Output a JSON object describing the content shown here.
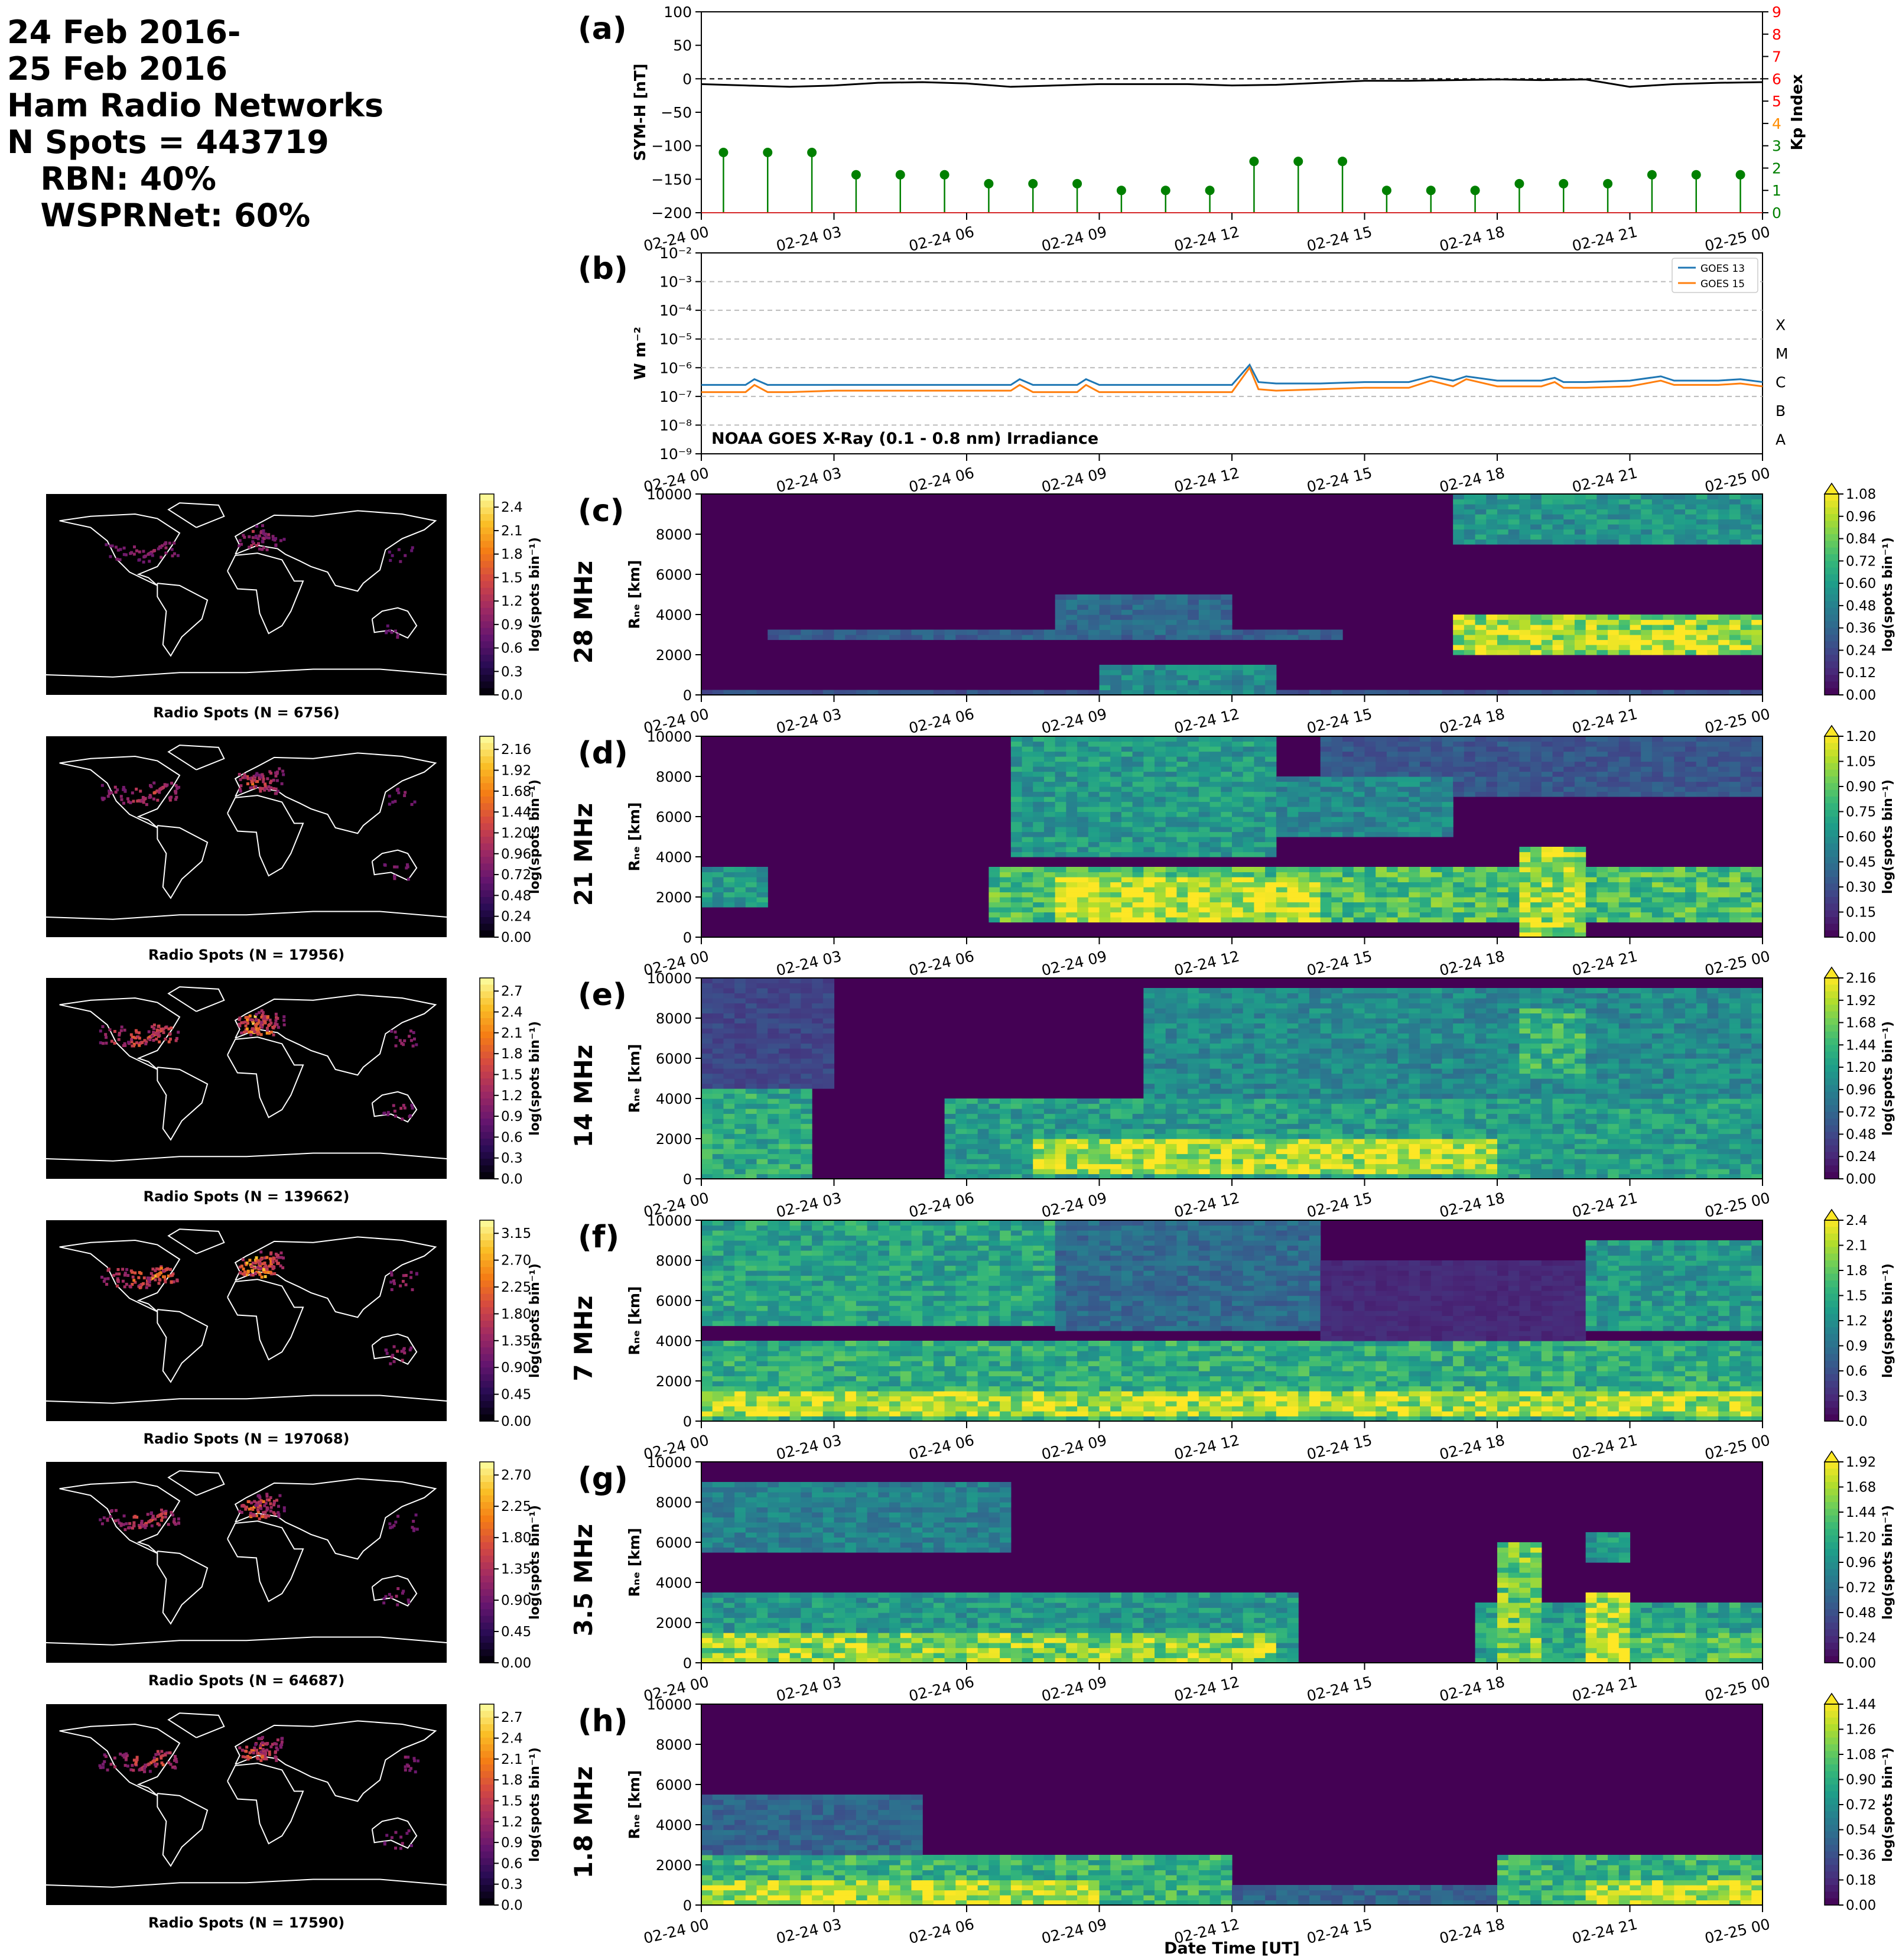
{
  "header": {
    "lines": [
      "24 Feb 2016-",
      "25 Feb 2016",
      "Ham Radio Networks",
      "N Spots = 443719",
      "   RBN: 40%",
      "   WSPRNet: 60%"
    ]
  },
  "colors": {
    "symh_line": "#000000",
    "kp_stem": "#008000",
    "goes13": "#1f77b4",
    "goes15": "#ff7f0e",
    "kp_axis_low": "#008000",
    "kp_axis_mid": "#ff8c00",
    "kp_axis_high": "#ff0000",
    "map_background": "#000000",
    "coastline": "#ffffff"
  },
  "time_ticks": [
    "02-24 00",
    "02-24 03",
    "02-24 06",
    "02-24 09",
    "02-24 12",
    "02-24 15",
    "02-24 18",
    "02-24 21",
    "02-25 00"
  ],
  "chart_data": [
    {
      "id": "a",
      "type": "line",
      "panel_label": "(a)",
      "ylabel": "SYM-H [nT]",
      "ylim": [
        -200,
        100
      ],
      "yticks": [
        "100",
        "50",
        "0",
        "−50",
        "−100",
        "−150",
        "−200"
      ],
      "y2label": "Kp Index",
      "y2lim": [
        0,
        9
      ],
      "y2ticks": [
        "0",
        "1",
        "2",
        "3",
        "4",
        "5",
        "6",
        "7",
        "8",
        "9"
      ],
      "x_hours": [
        0,
        1,
        2,
        3,
        4,
        5,
        6,
        7,
        8,
        9,
        10,
        11,
        12,
        13,
        14,
        15,
        16,
        17,
        18,
        19,
        20,
        21,
        22,
        23,
        24
      ],
      "symh": [
        -8,
        -10,
        -12,
        -10,
        -6,
        -5,
        -7,
        -12,
        -10,
        -8,
        -8,
        -8,
        -10,
        -9,
        -6,
        -3,
        -3,
        -2,
        -1,
        -2,
        -1,
        -12,
        -8,
        -6,
        -5
      ],
      "kp_times": [
        0,
        1,
        2,
        3,
        4,
        5,
        6,
        7,
        8,
        9,
        10,
        11,
        12,
        13,
        14,
        15,
        16,
        17,
        18,
        19,
        20,
        21,
        22,
        23
      ],
      "kp_values": [
        2.7,
        2.7,
        2.7,
        1.7,
        1.7,
        1.7,
        1.3,
        1.3,
        1.3,
        1.0,
        1.0,
        1.0,
        2.3,
        2.3,
        2.3,
        1.0,
        1.0,
        1.0,
        1.3,
        1.3,
        1.3,
        1.7,
        1.7,
        1.7
      ],
      "reference_line": 0
    },
    {
      "id": "b",
      "type": "line",
      "panel_label": "(b)",
      "ylabel": "W m⁻²",
      "yscale": "log",
      "ylim_exp": [
        -9,
        -2
      ],
      "yticks": [
        "10⁻²",
        "10⁻³",
        "10⁻⁴",
        "10⁻⁵",
        "10⁻⁶",
        "10⁻⁷",
        "10⁻⁸",
        "10⁻⁹"
      ],
      "flare_classes": [
        "X",
        "M",
        "C",
        "B",
        "A"
      ],
      "annotation": "NOAA GOES X-Ray (0.1 - 0.8 nm) Irradiance",
      "legend": [
        "GOES 13",
        "GOES 15"
      ],
      "legend_position": "top-right",
      "x_hours": [
        0,
        1,
        1.2,
        1.5,
        2,
        3,
        4,
        5,
        6,
        7,
        7.2,
        7.5,
        8,
        8.5,
        8.7,
        9,
        10,
        11,
        12,
        12.4,
        12.6,
        13,
        14,
        15,
        16,
        16.5,
        17,
        17.3,
        18,
        19,
        19.3,
        19.5,
        20,
        21,
        21.7,
        22,
        23,
        23.5,
        24
      ],
      "goes13_exp": [
        -6.6,
        -6.6,
        -6.4,
        -6.6,
        -6.6,
        -6.6,
        -6.6,
        -6.6,
        -6.6,
        -6.6,
        -6.4,
        -6.6,
        -6.6,
        -6.6,
        -6.4,
        -6.6,
        -6.6,
        -6.6,
        -6.6,
        -5.9,
        -6.5,
        -6.55,
        -6.55,
        -6.5,
        -6.5,
        -6.3,
        -6.45,
        -6.3,
        -6.45,
        -6.45,
        -6.35,
        -6.5,
        -6.5,
        -6.45,
        -6.3,
        -6.45,
        -6.45,
        -6.4,
        -6.5
      ],
      "goes15_exp": [
        -6.85,
        -6.85,
        -6.6,
        -6.85,
        -6.85,
        -6.8,
        -6.8,
        -6.8,
        -6.8,
        -6.8,
        -6.6,
        -6.85,
        -6.85,
        -6.85,
        -6.6,
        -6.85,
        -6.85,
        -6.85,
        -6.85,
        -6.0,
        -6.75,
        -6.8,
        -6.75,
        -6.7,
        -6.7,
        -6.45,
        -6.65,
        -6.4,
        -6.65,
        -6.65,
        -6.5,
        -6.7,
        -6.7,
        -6.65,
        -6.45,
        -6.6,
        -6.6,
        -6.55,
        -6.65
      ]
    },
    {
      "id": "c",
      "type": "heatmap",
      "panel_label": "(c)",
      "band": "28 MHz",
      "ylabel": "Rₙₑ [km]",
      "ylim": [
        0,
        10000
      ],
      "yticks": [
        "10000",
        "8000",
        "6000",
        "4000",
        "2000",
        "0"
      ],
      "cbar_label": "log(spots bin⁻¹)",
      "cbar_ticks": [
        "1.08",
        "0.96",
        "0.84",
        "0.72",
        "0.60",
        "0.48",
        "0.36",
        "0.24",
        "0.12",
        "0.00"
      ],
      "features": [
        {
          "t": [
            1.5,
            14.5
          ],
          "r": [
            2700,
            3200
          ],
          "v": 0.35
        },
        {
          "t": [
            8,
            12
          ],
          "r": [
            3000,
            5000
          ],
          "v": 0.4
        },
        {
          "t": [
            9,
            13
          ],
          "r": [
            0,
            1500
          ],
          "v": 0.55
        },
        {
          "t": [
            17,
            24
          ],
          "r": [
            2000,
            4000
          ],
          "v": 1.0
        },
        {
          "t": [
            20,
            23
          ],
          "r": [
            2200,
            3200
          ],
          "v": 1.1
        },
        {
          "t": [
            17,
            24
          ],
          "r": [
            7500,
            10000
          ],
          "v": 0.6
        },
        {
          "t": [
            0,
            24
          ],
          "r": [
            0,
            250
          ],
          "v": 0.3
        }
      ],
      "spot_map": {
        "caption": "Radio Spots (N = 6756)",
        "cbar_ticks": [
          "2.4",
          "2.1",
          "1.8",
          "1.5",
          "1.2",
          "0.9",
          "0.6",
          "0.3",
          "0.0"
        ]
      }
    },
    {
      "id": "d",
      "type": "heatmap",
      "panel_label": "(d)",
      "band": "21 MHz",
      "ylabel": "Rₙₑ [km]",
      "ylim": [
        0,
        10000
      ],
      "yticks": [
        "10000",
        "8000",
        "6000",
        "4000",
        "2000",
        "0"
      ],
      "cbar_label": "log(spots bin⁻¹)",
      "cbar_ticks": [
        "1.20",
        "1.05",
        "0.90",
        "0.75",
        "0.60",
        "0.45",
        "0.30",
        "0.15",
        "0.00"
      ],
      "features": [
        {
          "t": [
            0,
            1.5
          ],
          "r": [
            1500,
            3500
          ],
          "v": 0.7
        },
        {
          "t": [
            6.5,
            24
          ],
          "r": [
            800,
            3500
          ],
          "v": 0.9
        },
        {
          "t": [
            8,
            14
          ],
          "r": [
            800,
            3000
          ],
          "v": 1.2
        },
        {
          "t": [
            7,
            13
          ],
          "r": [
            4000,
            10000
          ],
          "v": 0.7
        },
        {
          "t": [
            12,
            17
          ],
          "r": [
            5000,
            8000
          ],
          "v": 0.6
        },
        {
          "t": [
            18.5,
            20
          ],
          "r": [
            0,
            4500
          ],
          "v": 1.1
        },
        {
          "t": [
            14,
            24
          ],
          "r": [
            7000,
            10000
          ],
          "v": 0.35
        }
      ],
      "spot_map": {
        "caption": "Radio Spots (N = 17956)",
        "cbar_ticks": [
          "2.16",
          "1.92",
          "1.68",
          "1.44",
          "1.20",
          "0.96",
          "0.72",
          "0.48",
          "0.24",
          "0.00"
        ]
      }
    },
    {
      "id": "e",
      "type": "heatmap",
      "panel_label": "(e)",
      "band": "14 MHz",
      "ylabel": "Rₙₑ [km]",
      "ylim": [
        0,
        10000
      ],
      "yticks": [
        "10000",
        "8000",
        "6000",
        "4000",
        "2000",
        "0"
      ],
      "cbar_label": "log(spots bin⁻¹)",
      "cbar_ticks": [
        "2.16",
        "1.92",
        "1.68",
        "1.44",
        "1.20",
        "0.96",
        "0.72",
        "0.48",
        "0.24",
        "0.00"
      ],
      "features": [
        {
          "t": [
            0,
            2.5
          ],
          "r": [
            0,
            4500
          ],
          "v": 1.4
        },
        {
          "t": [
            0,
            3
          ],
          "r": [
            4500,
            10000
          ],
          "v": 0.5
        },
        {
          "t": [
            5.5,
            24
          ],
          "r": [
            0,
            4000
          ],
          "v": 1.3
        },
        {
          "t": [
            7.5,
            18
          ],
          "r": [
            300,
            2000
          ],
          "v": 2.1
        },
        {
          "t": [
            10,
            24
          ],
          "r": [
            4000,
            9500
          ],
          "v": 1.1
        },
        {
          "t": [
            18.5,
            20
          ],
          "r": [
            5000,
            8500
          ],
          "v": 1.5
        }
      ],
      "spot_map": {
        "caption": "Radio Spots (N = 139662)",
        "cbar_ticks": [
          "2.7",
          "2.4",
          "2.1",
          "1.8",
          "1.5",
          "1.2",
          "0.9",
          "0.6",
          "0.3",
          "0.0"
        ]
      }
    },
    {
      "id": "f",
      "type": "heatmap",
      "panel_label": "(f)",
      "band": "7 MHz",
      "ylabel": "Rₙₑ [km]",
      "ylim": [
        0,
        10000
      ],
      "yticks": [
        "10000",
        "8000",
        "6000",
        "4000",
        "2000",
        "0"
      ],
      "cbar_label": "log(spots bin⁻¹)",
      "cbar_ticks": [
        "2.4",
        "2.1",
        "1.8",
        "1.5",
        "1.2",
        "0.9",
        "0.6",
        "0.3",
        "0.0"
      ],
      "features": [
        {
          "t": [
            0,
            24
          ],
          "r": [
            0,
            4000
          ],
          "v": 1.6
        },
        {
          "t": [
            0,
            24
          ],
          "r": [
            200,
            1500
          ],
          "v": 2.3
        },
        {
          "t": [
            0,
            8
          ],
          "r": [
            4800,
            10000
          ],
          "v": 1.5
        },
        {
          "t": [
            8,
            14
          ],
          "r": [
            4500,
            10000
          ],
          "v": 0.9
        },
        {
          "t": [
            20,
            24
          ],
          "r": [
            4500,
            9000
          ],
          "v": 1.4
        },
        {
          "t": [
            14,
            20
          ],
          "r": [
            2500,
            8000
          ],
          "v": 0.3
        }
      ],
      "spot_map": {
        "caption": "Radio Spots (N = 197068)",
        "cbar_ticks": [
          "3.15",
          "2.70",
          "2.25",
          "1.80",
          "1.35",
          "0.90",
          "0.45",
          "0.00"
        ]
      }
    },
    {
      "id": "g",
      "type": "heatmap",
      "panel_label": "(g)",
      "band": "3.5 MHz",
      "ylabel": "Rₙₑ [km]",
      "ylim": [
        0,
        10000
      ],
      "yticks": [
        "10000",
        "8000",
        "6000",
        "4000",
        "2000",
        "0"
      ],
      "cbar_label": "log(spots bin⁻¹)",
      "cbar_ticks": [
        "1.92",
        "1.68",
        "1.44",
        "1.20",
        "0.96",
        "0.72",
        "0.48",
        "0.24",
        "0.00"
      ],
      "features": [
        {
          "t": [
            0,
            13.5
          ],
          "r": [
            0,
            3500
          ],
          "v": 1.1
        },
        {
          "t": [
            0,
            13
          ],
          "r": [
            0,
            1500
          ],
          "v": 1.7
        },
        {
          "t": [
            0,
            7
          ],
          "r": [
            5500,
            9000
          ],
          "v": 0.9
        },
        {
          "t": [
            17.5,
            24
          ],
          "r": [
            0,
            3000
          ],
          "v": 1.2
        },
        {
          "t": [
            18,
            19
          ],
          "r": [
            0,
            6000
          ],
          "v": 1.6
        },
        {
          "t": [
            20,
            21
          ],
          "r": [
            0,
            3500
          ],
          "v": 1.9
        },
        {
          "t": [
            20,
            21
          ],
          "r": [
            5000,
            6500
          ],
          "v": 1.1
        },
        {
          "t": [
            21,
            24
          ],
          "r": [
            0,
            1500
          ],
          "v": 1.5
        }
      ],
      "spot_map": {
        "caption": "Radio Spots (N = 64687)",
        "cbar_ticks": [
          "2.70",
          "2.25",
          "1.80",
          "1.35",
          "0.90",
          "0.45",
          "0.00"
        ]
      }
    },
    {
      "id": "h",
      "type": "heatmap",
      "panel_label": "(h)",
      "band": "1.8 MHz",
      "ylabel": "Rₙₑ [km]",
      "ylim": [
        0,
        10000
      ],
      "yticks": [
        "10000",
        "8000",
        "6000",
        "4000",
        "2000",
        "0"
      ],
      "xlabel": "Date Time [UT]",
      "cbar_label": "log(spots bin⁻¹)",
      "cbar_ticks": [
        "1.44",
        "1.26",
        "1.08",
        "0.90",
        "0.72",
        "0.54",
        "0.36",
        "0.18",
        "0.00"
      ],
      "features": [
        {
          "t": [
            0,
            12
          ],
          "r": [
            0,
            2500
          ],
          "v": 1.0
        },
        {
          "t": [
            0,
            9
          ],
          "r": [
            0,
            1200
          ],
          "v": 1.4
        },
        {
          "t": [
            0,
            5
          ],
          "r": [
            2500,
            5500
          ],
          "v": 0.5
        },
        {
          "t": [
            18,
            24
          ],
          "r": [
            0,
            2500
          ],
          "v": 1.0
        },
        {
          "t": [
            20,
            24
          ],
          "r": [
            0,
            1200
          ],
          "v": 1.4
        },
        {
          "t": [
            12,
            18
          ],
          "r": [
            0,
            1000
          ],
          "v": 0.5
        }
      ],
      "spot_map": {
        "caption": "Radio Spots (N = 17590)",
        "cbar_ticks": [
          "2.7",
          "2.4",
          "2.1",
          "1.8",
          "1.5",
          "1.2",
          "0.9",
          "0.6",
          "0.3",
          "0.0"
        ]
      }
    }
  ]
}
